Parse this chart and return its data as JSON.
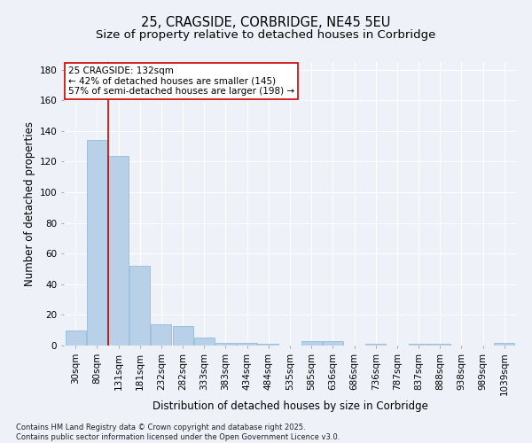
{
  "title": "25, CRAGSIDE, CORBRIDGE, NE45 5EU",
  "subtitle": "Size of property relative to detached houses in Corbridge",
  "xlabel": "Distribution of detached houses by size in Corbridge",
  "ylabel": "Number of detached properties",
  "categories": [
    "30sqm",
    "80sqm",
    "131sqm",
    "181sqm",
    "232sqm",
    "282sqm",
    "333sqm",
    "383sqm",
    "434sqm",
    "484sqm",
    "535sqm",
    "585sqm",
    "636sqm",
    "686sqm",
    "736sqm",
    "787sqm",
    "837sqm",
    "888sqm",
    "938sqm",
    "989sqm",
    "1039sqm"
  ],
  "values": [
    10,
    134,
    124,
    52,
    14,
    13,
    5,
    2,
    2,
    1,
    0,
    3,
    3,
    0,
    1,
    0,
    1,
    1,
    0,
    0,
    2
  ],
  "bar_color": "#b8d0e8",
  "bar_edge_color": "#8ab4d4",
  "red_line_x": 1.5,
  "annotation_line1": "25 CRAGSIDE: 132sqm",
  "annotation_line2": "← 42% of detached houses are smaller (145)",
  "annotation_line3": "57% of semi-detached houses are larger (198) →",
  "annotation_box_color": "#ffffff",
  "annotation_box_edge_color": "#cc0000",
  "red_line_color": "#cc0000",
  "ylim": [
    0,
    185
  ],
  "yticks": [
    0,
    20,
    40,
    60,
    80,
    100,
    120,
    140,
    160,
    180
  ],
  "footnote1": "Contains HM Land Registry data © Crown copyright and database right 2025.",
  "footnote2": "Contains public sector information licensed under the Open Government Licence v3.0.",
  "background_color": "#eef2f8",
  "grid_color": "#ffffff",
  "title_fontsize": 10.5,
  "subtitle_fontsize": 9.5,
  "xlabel_fontsize": 8.5,
  "ylabel_fontsize": 8.5,
  "tick_fontsize": 7.5,
  "annot_fontsize": 7.5,
  "footnote_fontsize": 6.0
}
